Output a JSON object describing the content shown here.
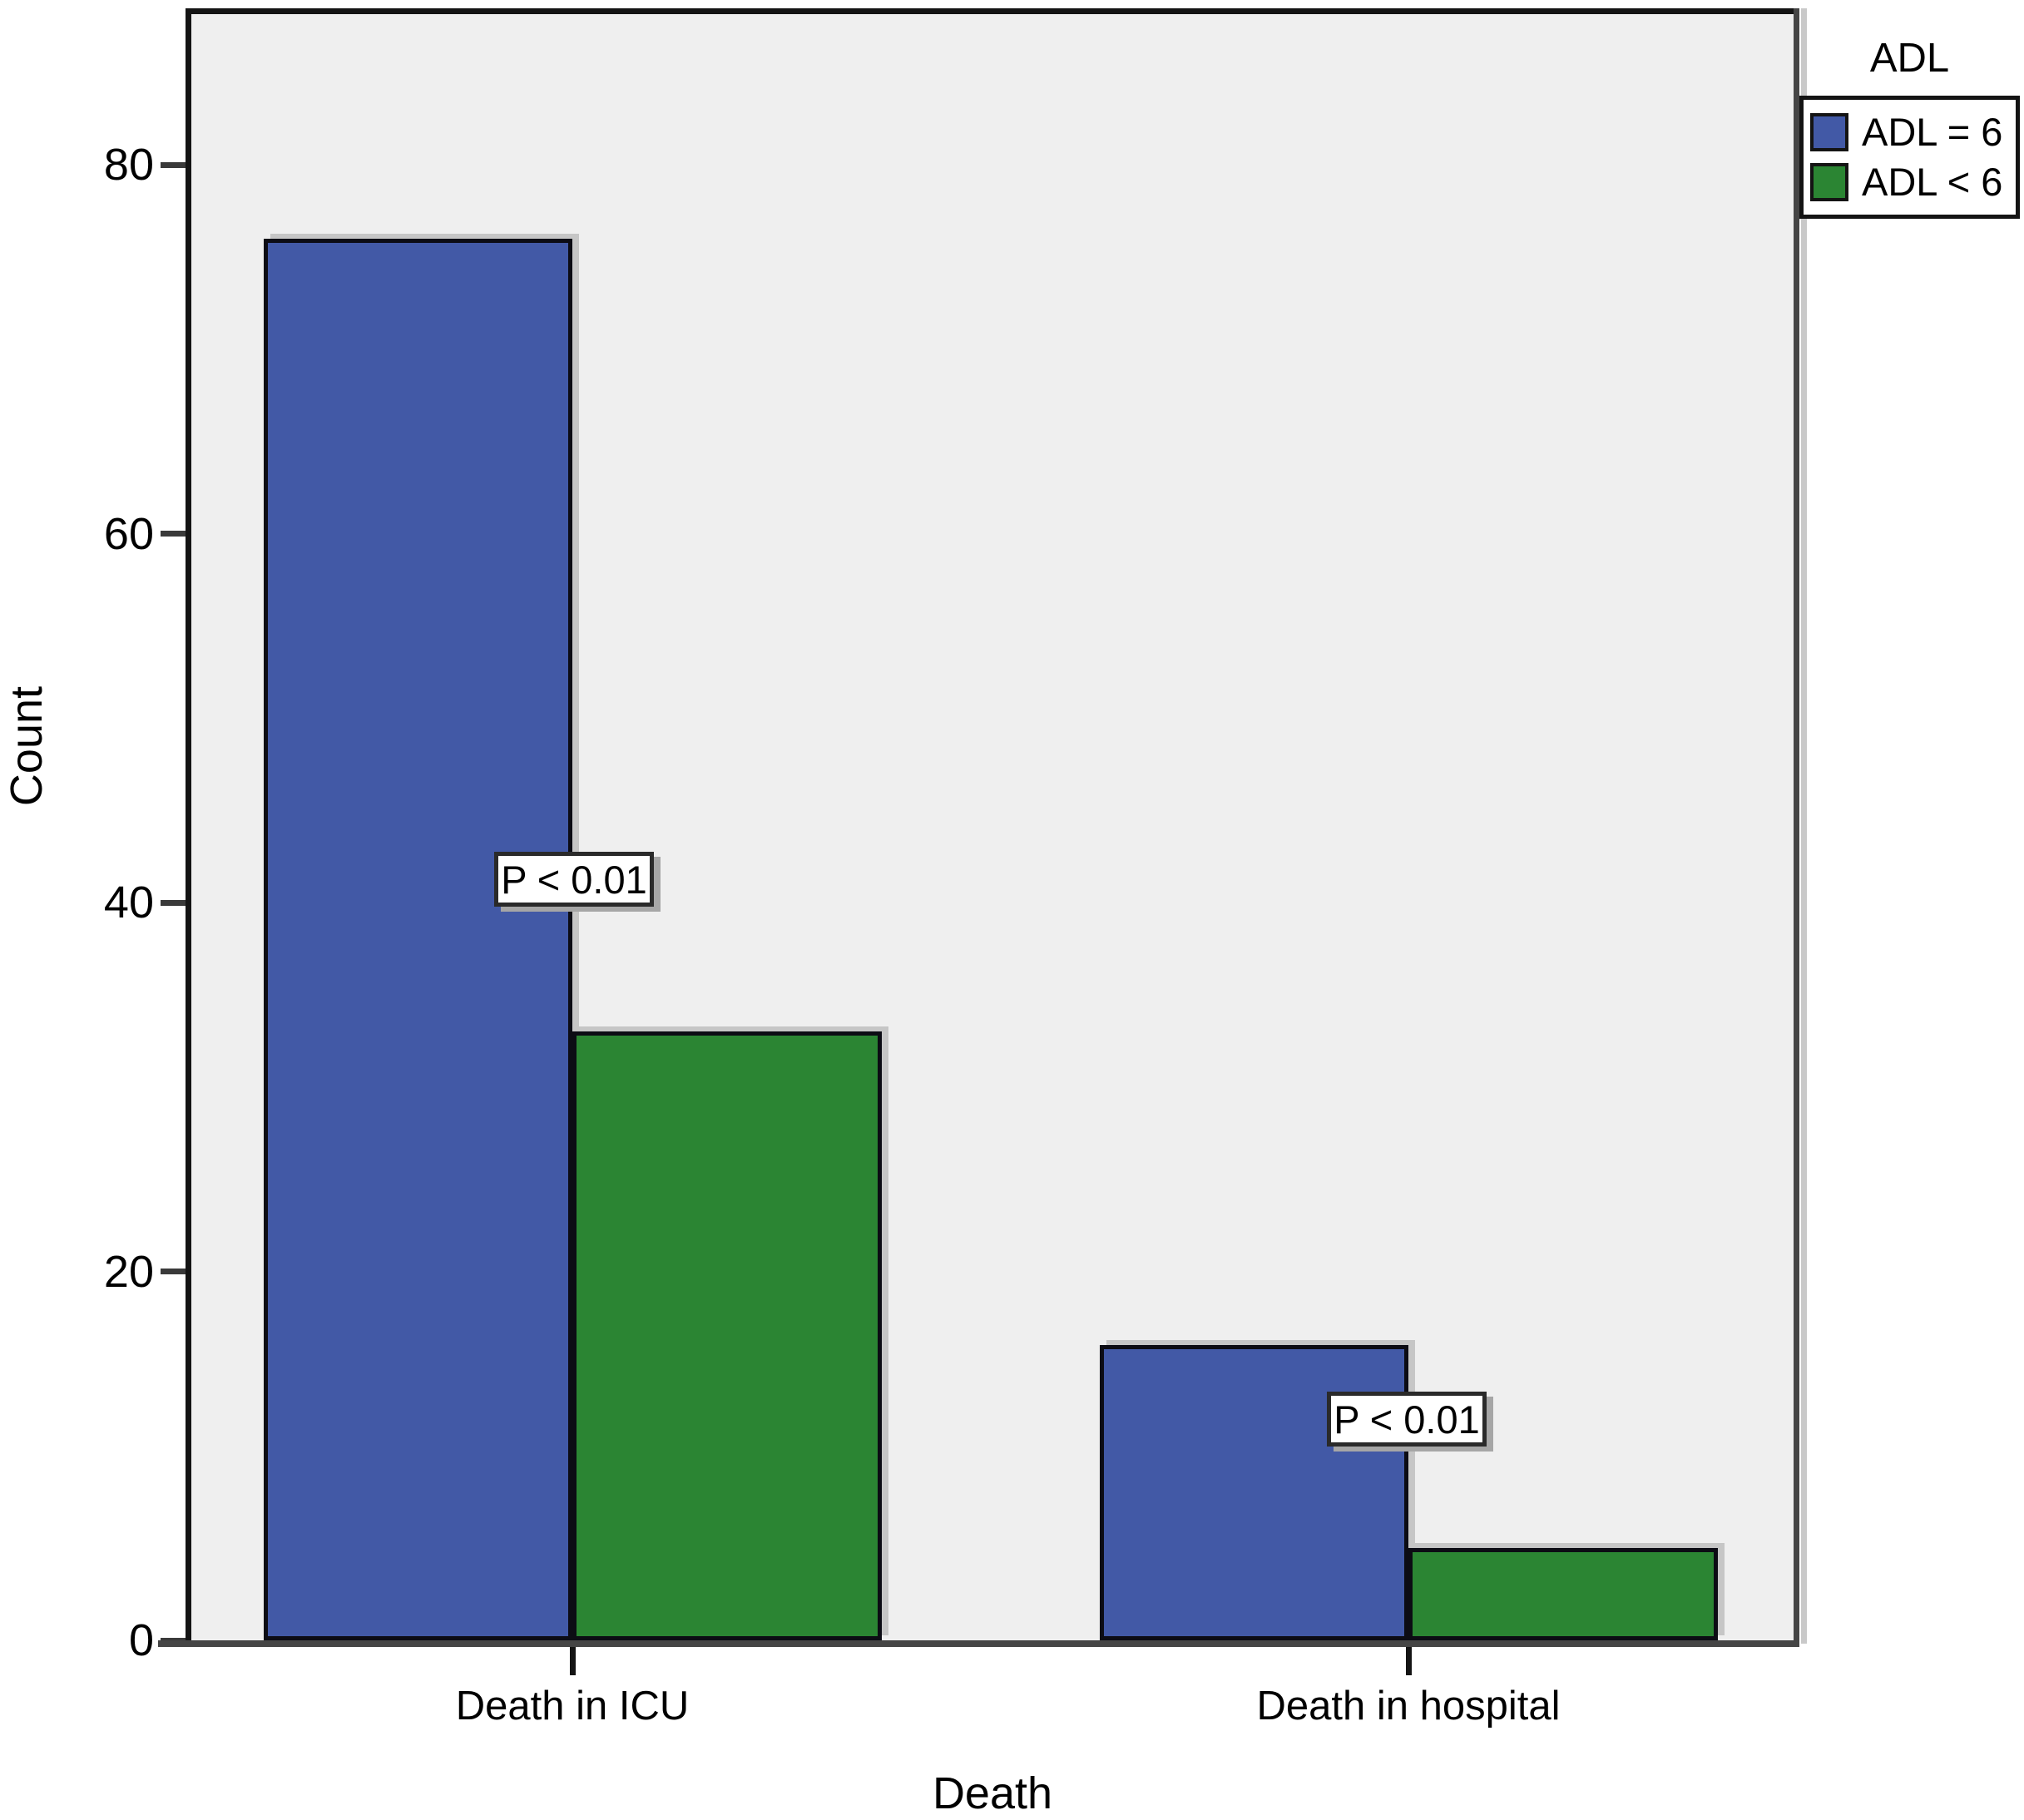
{
  "figure": {
    "background_color": "#ffffff",
    "plot_background_color": "#efefef",
    "frame_color": "#141414",
    "axis_color": "#454545"
  },
  "legend": {
    "title": "ADL",
    "items": [
      {
        "label": "ADL = 6",
        "color": "#4259a6"
      },
      {
        "label": "ADL < 6",
        "color": "#2b8533"
      }
    ]
  },
  "chart_data": {
    "type": "bar",
    "categories": [
      "Death in ICU",
      "Death in hospital"
    ],
    "series": [
      {
        "name": "ADL = 6",
        "color": "#4259a6",
        "values": [
          76,
          16
        ]
      },
      {
        "name": "ADL < 6",
        "color": "#2b8533",
        "values": [
          33,
          5
        ]
      }
    ],
    "title": "",
    "xlabel": "Death",
    "ylabel": "Count",
    "ylim": [
      0,
      88
    ],
    "yticks": [
      0,
      20,
      40,
      60,
      80
    ],
    "grid": false,
    "legend_position": "outside-top-right",
    "plot_background": "#efefef",
    "annotations": [
      {
        "text": "P < 0.01",
        "category": "Death in ICU"
      },
      {
        "text": "P < 0.01",
        "category": "Death in hospital"
      }
    ]
  }
}
